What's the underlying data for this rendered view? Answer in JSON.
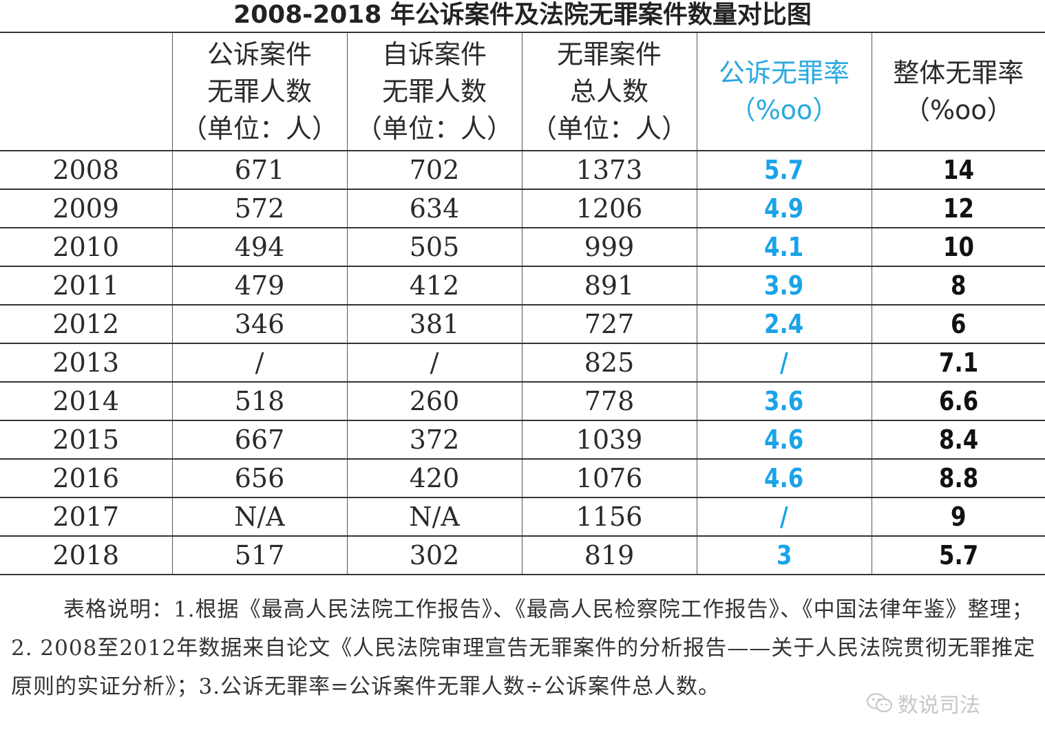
{
  "chart_data": {
    "type": "table",
    "title": "2008-2018 年公诉案件及法院无罪案件数量对比图",
    "columns": [
      {
        "key": "year",
        "lines": [
          ""
        ]
      },
      {
        "key": "public_acquitted",
        "lines": [
          "公诉案件",
          "无罪人数",
          "（单位：人）"
        ]
      },
      {
        "key": "private_acquitted",
        "lines": [
          "自诉案件",
          "无罪人数",
          "（单位：人）"
        ]
      },
      {
        "key": "total_acquitted",
        "lines": [
          "无罪案件",
          "总人数",
          "（单位：人）"
        ]
      },
      {
        "key": "public_rate",
        "lines": [
          "公诉无罪率",
          "（%oo）"
        ],
        "color": "#29a8e0"
      },
      {
        "key": "overall_rate",
        "lines": [
          "整体无罪率",
          "（%oo）"
        ]
      }
    ],
    "rows": [
      {
        "year": "2008",
        "public_acquitted": "671",
        "private_acquitted": "702",
        "total_acquitted": "1373",
        "public_rate": "5.7",
        "overall_rate": "14"
      },
      {
        "year": "2009",
        "public_acquitted": "572",
        "private_acquitted": "634",
        "total_acquitted": "1206",
        "public_rate": "4.9",
        "overall_rate": "12"
      },
      {
        "year": "2010",
        "public_acquitted": "494",
        "private_acquitted": "505",
        "total_acquitted": "999",
        "public_rate": "4.1",
        "overall_rate": "10"
      },
      {
        "year": "2011",
        "public_acquitted": "479",
        "private_acquitted": "412",
        "total_acquitted": "891",
        "public_rate": "3.9",
        "overall_rate": "8"
      },
      {
        "year": "2012",
        "public_acquitted": "346",
        "private_acquitted": "381",
        "total_acquitted": "727",
        "public_rate": "2.4",
        "overall_rate": "6"
      },
      {
        "year": "2013",
        "public_acquitted": "/",
        "private_acquitted": "/",
        "total_acquitted": "825",
        "public_rate": "/",
        "overall_rate": "7.1"
      },
      {
        "year": "2014",
        "public_acquitted": "518",
        "private_acquitted": "260",
        "total_acquitted": "778",
        "public_rate": "3.6",
        "overall_rate": "6.6"
      },
      {
        "year": "2015",
        "public_acquitted": "667",
        "private_acquitted": "372",
        "total_acquitted": "1039",
        "public_rate": "4.6",
        "overall_rate": "8.4"
      },
      {
        "year": "2016",
        "public_acquitted": "656",
        "private_acquitted": "420",
        "total_acquitted": "1076",
        "public_rate": "4.6",
        "overall_rate": "8.8"
      },
      {
        "year": "2017",
        "public_acquitted": "N/A",
        "private_acquitted": "N/A",
        "total_acquitted": "1156",
        "public_rate": "/",
        "overall_rate": "9"
      },
      {
        "year": "2018",
        "public_acquitted": "517",
        "private_acquitted": "302",
        "total_acquitted": "819",
        "public_rate": "3",
        "overall_rate": "5.7"
      }
    ]
  },
  "notes": "表格说明：1.根据《最高人民法院工作报告》、《最高人民检察院工作报告》、《中国法律年鉴》整理；2. 2008至2012年数据来自论文《人民法院审理宣告无罪案件的分析报告——关于人民法院贯彻无罪推定原则的实证分析》；3.公诉无罪率=公诉案件无罪人数÷公诉案件总人数。",
  "watermark": {
    "icon": "wechat-icon",
    "text": "数说司法"
  },
  "colors": {
    "public_rate": "#1aa3e8",
    "overall_rate": "#111111",
    "rule": "#333333"
  }
}
